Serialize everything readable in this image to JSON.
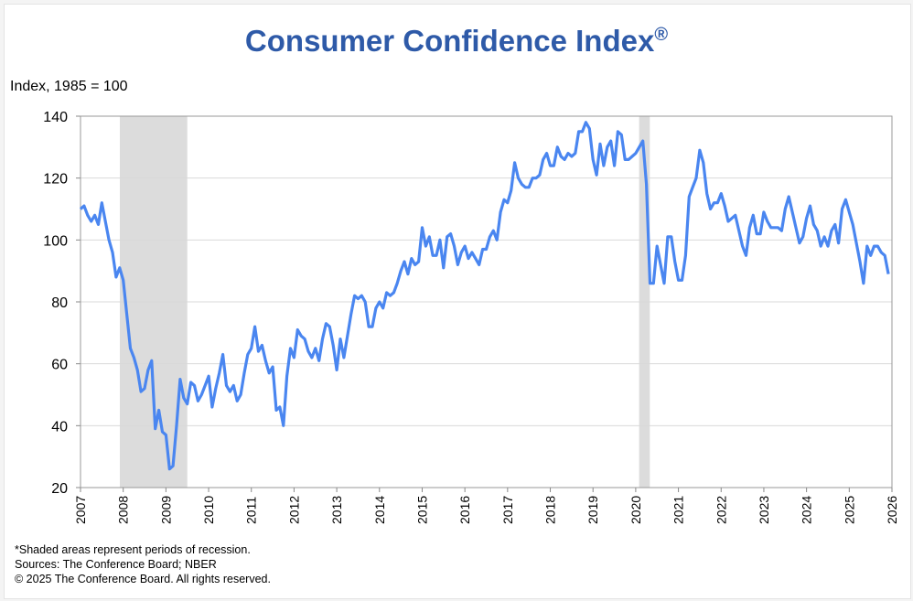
{
  "chart_data": {
    "type": "line",
    "title": "Consumer Confidence Index",
    "title_mark": "®",
    "ylabel": "Index, 1985 = 100",
    "xlabel": "",
    "ylim": [
      20,
      140
    ],
    "yticks": [
      20,
      40,
      60,
      80,
      100,
      120,
      140
    ],
    "xlim": [
      2007,
      2026
    ],
    "xticks": [
      "2007",
      "2008",
      "2009",
      "2010",
      "2011",
      "2012",
      "2013",
      "2014",
      "2015",
      "2016",
      "2017",
      "2018",
      "2019",
      "2020",
      "2021",
      "2022",
      "2023",
      "2024",
      "2025",
      "2026"
    ],
    "grid": "horizontal",
    "line_color": "#4a86f0",
    "recession_color": "#dcdcdc",
    "recessions": [
      [
        2007.92,
        2009.5
      ],
      [
        2020.08,
        2020.33
      ]
    ],
    "series": [
      {
        "name": "Consumer Confidence Index",
        "start": 2007.0,
        "step_months": 1,
        "values": [
          110,
          111,
          108,
          106,
          108,
          105,
          112,
          106,
          100,
          96,
          88,
          91,
          87,
          76,
          65,
          62,
          58,
          51,
          52,
          58,
          61,
          39,
          45,
          38,
          37,
          26,
          27,
          40,
          55,
          49,
          47,
          54,
          53,
          48,
          50,
          53,
          56,
          46,
          52,
          57,
          63,
          53,
          51,
          53,
          48,
          50,
          57,
          63,
          65,
          72,
          64,
          66,
          61,
          57,
          59,
          45,
          46,
          40,
          56,
          65,
          62,
          71,
          69,
          68,
          64,
          62,
          65,
          61,
          68,
          73,
          72,
          66,
          58,
          68,
          62,
          69,
          76,
          82,
          81,
          82,
          80,
          72,
          72,
          78,
          80,
          78,
          83,
          82,
          83,
          86,
          90,
          93,
          89,
          94,
          92,
          93,
          104,
          98,
          101,
          95,
          95,
          100,
          91,
          101,
          102,
          98,
          92,
          96,
          98,
          94,
          96,
          94,
          92,
          97,
          97,
          101,
          103,
          100,
          109,
          113,
          112,
          116,
          125,
          120,
          118,
          117,
          117,
          120,
          120,
          121,
          126,
          128,
          124,
          124,
          130,
          127,
          126,
          128,
          127,
          128,
          135,
          135,
          138,
          136,
          126,
          121,
          131,
          124,
          130,
          132,
          124,
          135,
          134,
          126,
          126,
          127,
          128,
          130,
          132,
          118,
          86,
          86,
          98,
          92,
          86,
          101,
          101,
          93,
          87,
          87,
          95,
          114,
          117,
          120,
          129,
          125,
          115,
          110,
          112,
          112,
          115,
          111,
          106,
          107,
          108,
          103,
          98,
          95,
          104,
          108,
          102,
          102,
          109,
          106,
          104,
          104,
          104,
          103,
          110,
          114,
          109,
          104,
          99,
          101,
          107,
          111,
          105,
          103,
          98,
          101,
          98,
          103,
          105,
          99,
          110,
          113,
          109,
          105,
          99,
          93,
          86,
          98,
          95,
          98,
          98,
          96,
          95,
          89
        ]
      }
    ],
    "footnotes": [
      "*Shaded areas represent periods of recession.",
      "Sources:  The Conference Board;  NBER",
      "© 2025 The Conference Board. All rights reserved."
    ]
  }
}
